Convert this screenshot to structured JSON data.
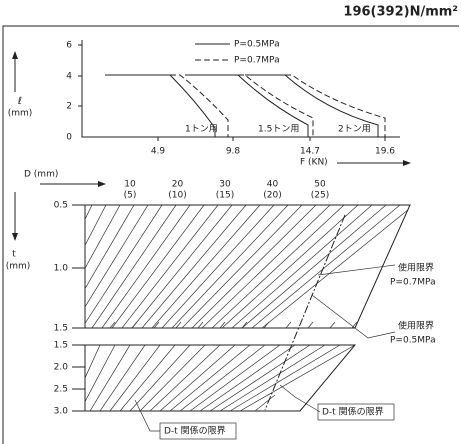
{
  "header": {
    "title": "196(392)N/mm²"
  },
  "top_chart": {
    "legend": [
      "P=0.5MPa",
      "P=0.7MPa"
    ],
    "y_label": [
      "ℓ",
      "(mm)"
    ],
    "y_ticks": [
      "6",
      "4",
      "2",
      "0"
    ],
    "x_ticks": [
      "4.9",
      "9.8",
      "14.7",
      "19.6"
    ],
    "x_label": "F (KN)",
    "curve_labels": [
      "1トン用",
      "1.5トン用",
      "2トン用"
    ]
  },
  "nomogram": {
    "d_label": "D (mm)",
    "d_ticks": [
      [
        "10",
        "(5)"
      ],
      [
        "20",
        "(10)"
      ],
      [
        "30",
        "(15)"
      ],
      [
        "40",
        "(20)"
      ],
      [
        "50",
        "(25)"
      ]
    ],
    "t_label": [
      "t",
      "(mm)"
    ],
    "t_ticks_upper": [
      "0.5",
      "1.0",
      "1.5"
    ],
    "t_ticks_lower": [
      "1.5",
      "2.0",
      "2.5",
      "3.0"
    ],
    "annotations": [
      [
        "使用限界",
        "P=0.7MPa"
      ],
      [
        "使用限界",
        "P=0.5MPa"
      ],
      [
        "D-t 関係の限界"
      ],
      [
        "D-t 関係の限界"
      ]
    ]
  }
}
